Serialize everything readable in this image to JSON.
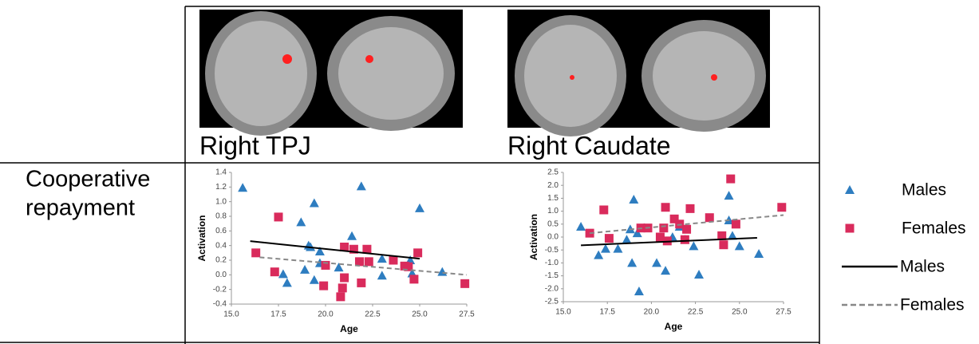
{
  "figure": {
    "regions": [
      "Right TPJ",
      "Right Caudate"
    ],
    "row_label": [
      "Cooperative",
      "repayment"
    ]
  },
  "legend": [
    {
      "name": "Males",
      "marker": "triangle",
      "color": "#2e7dc0"
    },
    {
      "name": "Females",
      "marker": "square",
      "color": "#d92b5c"
    },
    {
      "name": "Males",
      "line": "solid",
      "color": "#000000"
    },
    {
      "name": "Females",
      "line": "dashed",
      "color": "#888888"
    }
  ],
  "chart_data": [
    {
      "type": "scatter",
      "xlabel": "Age",
      "ylabel": "Activation",
      "xlim": [
        15,
        27.5
      ],
      "xticks": [
        {
          "value": 15,
          "label": "15.0"
        },
        17.5,
        {
          "value": 20,
          "label": "20.0"
        },
        22.5,
        {
          "value": 25,
          "label": "25.0"
        },
        27.5
      ],
      "ylim": [
        -0.4,
        1.4
      ],
      "yticks": [
        -0.4,
        -0.2,
        {
          "value": 0,
          "label": "0.0"
        },
        0.2,
        0.4,
        0.6,
        0.8,
        {
          "value": 1,
          "label": "1.0"
        },
        1.2,
        1.4
      ],
      "series": [
        {
          "x": [
            15.6,
            17.75,
            17.96,
            18.7,
            19.1,
            19.2,
            19.4,
            18.9,
            19.4,
            19.7,
            19.7,
            20.7,
            21.9,
            21.4,
            23.0,
            23.0,
            24.5,
            24.6,
            25.0,
            26.2
          ],
          "values": [
            1.19,
            0.01,
            -0.11,
            0.72,
            0.4,
            0.38,
            0.98,
            0.07,
            -0.07,
            0.32,
            0.16,
            0.1,
            1.21,
            0.53,
            0.22,
            -0.01,
            0.2,
            0.02,
            0.91,
            0.04
          ]
        },
        {
          "x": [
            16.3,
            17.5,
            17.3,
            19.9,
            20.0,
            20.8,
            20.9,
            21.0,
            21.0,
            21.5,
            21.8,
            21.9,
            22.2,
            22.3,
            23.6,
            24.2,
            24.4,
            24.7,
            24.9,
            27.4
          ],
          "values": [
            0.3,
            0.79,
            0.04,
            -0.15,
            0.13,
            -0.3,
            -0.18,
            0.38,
            -0.04,
            0.35,
            0.18,
            -0.11,
            0.35,
            0.18,
            0.2,
            0.12,
            0.11,
            -0.06,
            0.3,
            -0.12
          ]
        }
      ],
      "trend_lines": [
        {
          "x": [
            16,
            25
          ],
          "values": [
            0.46,
            0.22
          ]
        },
        {
          "x": [
            16.5,
            27.5
          ],
          "values": [
            0.24,
            0.0
          ]
        }
      ]
    },
    {
      "type": "scatter",
      "xlabel": "Age",
      "ylabel": "Activation",
      "xlim": [
        15,
        27.5
      ],
      "xticks": [
        {
          "value": 15,
          "label": "15.0"
        },
        17.5,
        {
          "value": 20,
          "label": "20.0"
        },
        22.5,
        {
          "value": 25,
          "label": "25.0"
        },
        27.5
      ],
      "ylim": [
        -2.5,
        2.5
      ],
      "yticks": [
        -2.5,
        {
          "value": -2,
          "label": "-2.0"
        },
        -1.5,
        {
          "value": -1,
          "label": "-1.0"
        },
        -0.5,
        {
          "value": 0,
          "label": "0.0"
        },
        0.5,
        {
          "value": 1,
          "label": "1.0"
        },
        1.5,
        {
          "value": 2,
          "label": "2.0"
        },
        2.5
      ],
      "series": [
        {
          "x": [
            16.0,
            17.0,
            17.4,
            18.1,
            18.6,
            18.8,
            18.9,
            19.0,
            19.2,
            19.3,
            19.6,
            20.3,
            20.8,
            21.2,
            21.6,
            21.9,
            22.4,
            22.7,
            24.4,
            24.4,
            24.6,
            25.0,
            26.1
          ],
          "values": [
            0.4,
            -0.7,
            -0.45,
            -0.45,
            -0.1,
            0.3,
            -1.0,
            1.45,
            0.15,
            -2.1,
            0.35,
            -1.0,
            -1.3,
            0.0,
            0.4,
            -0.1,
            -0.35,
            -1.45,
            1.6,
            0.65,
            0.05,
            -0.35,
            -0.65
          ]
        },
        {
          "x": [
            16.5,
            17.3,
            17.6,
            19.4,
            19.8,
            20.5,
            20.7,
            20.8,
            20.9,
            21.3,
            21.6,
            21.9,
            22.0,
            22.2,
            23.3,
            24.0,
            24.1,
            24.5,
            24.8,
            27.4
          ],
          "values": [
            0.15,
            1.05,
            -0.05,
            0.35,
            0.35,
            0.0,
            0.35,
            1.15,
            -0.15,
            0.7,
            0.5,
            -0.1,
            0.3,
            1.1,
            0.75,
            0.05,
            -0.3,
            2.25,
            0.5,
            1.15
          ]
        }
      ],
      "trend_lines": [
        {
          "x": [
            16,
            26
          ],
          "values": [
            -0.32,
            -0.03
          ]
        },
        {
          "x": [
            16.5,
            27.5
          ],
          "values": [
            0.15,
            0.85
          ]
        }
      ]
    }
  ]
}
